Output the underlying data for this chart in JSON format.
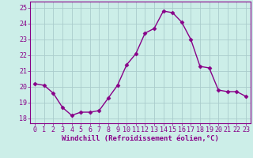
{
  "x": [
    0,
    1,
    2,
    3,
    4,
    5,
    6,
    7,
    8,
    9,
    10,
    11,
    12,
    13,
    14,
    15,
    16,
    17,
    18,
    19,
    20,
    21,
    22,
    23
  ],
  "y": [
    20.2,
    20.1,
    19.6,
    18.7,
    18.2,
    18.4,
    18.4,
    18.5,
    19.3,
    20.1,
    21.4,
    22.1,
    23.4,
    23.7,
    24.8,
    24.7,
    24.1,
    23.0,
    21.3,
    21.2,
    19.8,
    19.7,
    19.7,
    19.4
  ],
  "line_color": "#880088",
  "marker": "D",
  "marker_size": 2.5,
  "bg_color": "#cceee8",
  "grid_color": "#aacccc",
  "xlabel": "Windchill (Refroidissement éolien,°C)",
  "ylabel_ticks": [
    18,
    19,
    20,
    21,
    22,
    23,
    24,
    25
  ],
  "xtick_labels": [
    "0",
    "1",
    "2",
    "3",
    "4",
    "5",
    "6",
    "7",
    "8",
    "9",
    "10",
    "11",
    "12",
    "13",
    "14",
    "15",
    "16",
    "17",
    "18",
    "19",
    "20",
    "21",
    "22",
    "23"
  ],
  "ylim": [
    17.7,
    25.4
  ],
  "xlim": [
    -0.5,
    23.5
  ],
  "xlabel_fontsize": 6.5,
  "tick_fontsize": 6.0,
  "label_color": "#880088",
  "tick_color": "#880088",
  "spine_color": "#880088",
  "linewidth": 1.0
}
